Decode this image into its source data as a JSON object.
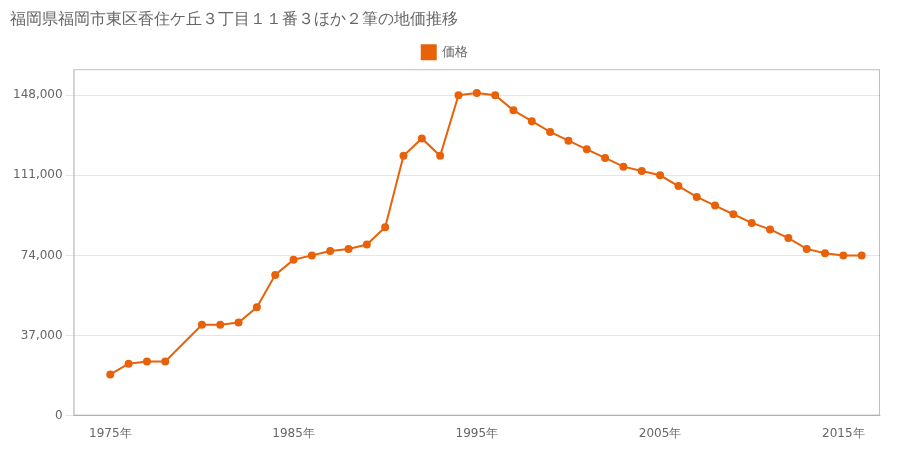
{
  "chart_data": {
    "type": "line",
    "title": "福岡県福岡市東区香住ケ丘３丁目１１番３ほか２筆の地価推移",
    "x": [
      1975,
      1976,
      1977,
      1978,
      1980,
      1981,
      1982,
      1983,
      1984,
      1985,
      1986,
      1987,
      1988,
      1989,
      1990,
      1991,
      1992,
      1993,
      1994,
      1995,
      1996,
      1997,
      1998,
      1999,
      2000,
      2001,
      2002,
      2003,
      2004,
      2005,
      2006,
      2007,
      2008,
      2009,
      2010,
      2011,
      2012,
      2013,
      2014,
      2015,
      2016
    ],
    "series": [
      {
        "name": "価格",
        "color": "#E8620A",
        "marker": "circle",
        "line_style": "solid",
        "values": [
          19000,
          24000,
          25000,
          25000,
          42000,
          42000,
          43000,
          50000,
          65000,
          72000,
          74000,
          76000,
          77000,
          79000,
          87000,
          120000,
          128000,
          120000,
          148000,
          149000,
          148000,
          141000,
          136000,
          131000,
          127000,
          123000,
          119000,
          115000,
          113000,
          111000,
          106000,
          101000,
          97000,
          93000,
          89000,
          86000,
          82000,
          77000,
          75000,
          74000,
          74000
        ]
      }
    ],
    "xlim": [
      1973,
      2017
    ],
    "xticks": [
      {
        "value": 1975,
        "label": "1975年"
      },
      {
        "value": 1985,
        "label": "1985年"
      },
      {
        "value": 1995,
        "label": "1995年"
      },
      {
        "value": 2005,
        "label": "2005年"
      },
      {
        "value": 2015,
        "label": "2015年"
      }
    ],
    "ylim": [
      0,
      160000
    ],
    "yticks": [
      0,
      {
        "value": 37000,
        "label": "37,000"
      },
      {
        "value": 74000,
        "label": "74,000"
      },
      {
        "value": 111000,
        "label": "111,000"
      },
      {
        "value": 148000,
        "label": "148,000"
      }
    ],
    "grid": "y",
    "legend": "top"
  }
}
